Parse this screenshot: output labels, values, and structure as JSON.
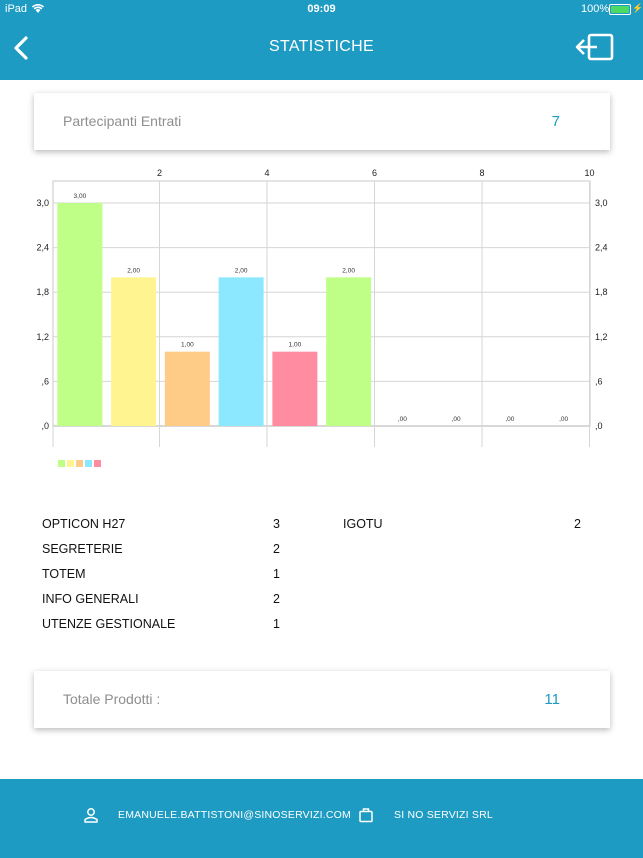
{
  "status_bar": {
    "carrier": "iPad",
    "time": "09:09",
    "battery_pct": "100%"
  },
  "header": {
    "title": "STATISTICHE",
    "back_icon": "chevron-left-icon",
    "logout_icon": "logout-icon"
  },
  "participants_card": {
    "label": "Partecipanti Entrati",
    "value": "7"
  },
  "chart_data": {
    "type": "bar",
    "x_top_ticks": [
      "2",
      "4",
      "6",
      "8",
      "10"
    ],
    "y_ticks": [
      "3,0",
      "2,4",
      "1,8",
      "1,2",
      ",6",
      ",0"
    ],
    "ylim": [
      0,
      3
    ],
    "values": [
      3,
      2,
      1,
      2,
      1,
      2,
      0,
      0,
      0,
      0
    ],
    "value_labels": [
      "3,00",
      "2,00",
      "1,00",
      "2,00",
      "1,00",
      "2,00",
      ",00",
      ",00",
      ",00",
      ",00"
    ],
    "colors": [
      "#bfff88",
      "#fff48f",
      "#ffcc88",
      "#8be8ff",
      "#ff8ca1",
      "#bfff88",
      "#fff48f",
      "#ffcc88",
      "#8be8ff",
      "#ff8ca1"
    ],
    "legend_colors": [
      "#bfff88",
      "#fff48f",
      "#ffcc88",
      "#8be8ff",
      "#ff8ca1"
    ],
    "grid": true
  },
  "products_left": [
    {
      "name": "OPTICON H27",
      "count": "3"
    },
    {
      "name": "SEGRETERIE",
      "count": "2"
    },
    {
      "name": "TOTEM",
      "count": "1"
    },
    {
      "name": "INFO GENERALI",
      "count": "2"
    },
    {
      "name": "UTENZE GESTIONALE",
      "count": "1"
    }
  ],
  "products_right": [
    {
      "name": "IGOTU",
      "count": "2"
    }
  ],
  "total_card": {
    "label": "Totale Prodotti :",
    "value": "11"
  },
  "footer": {
    "email": "EMANUELE.BATTISTONI@SINOSERVIZI.COM",
    "company": "SI NO SERVIZI SRL"
  }
}
